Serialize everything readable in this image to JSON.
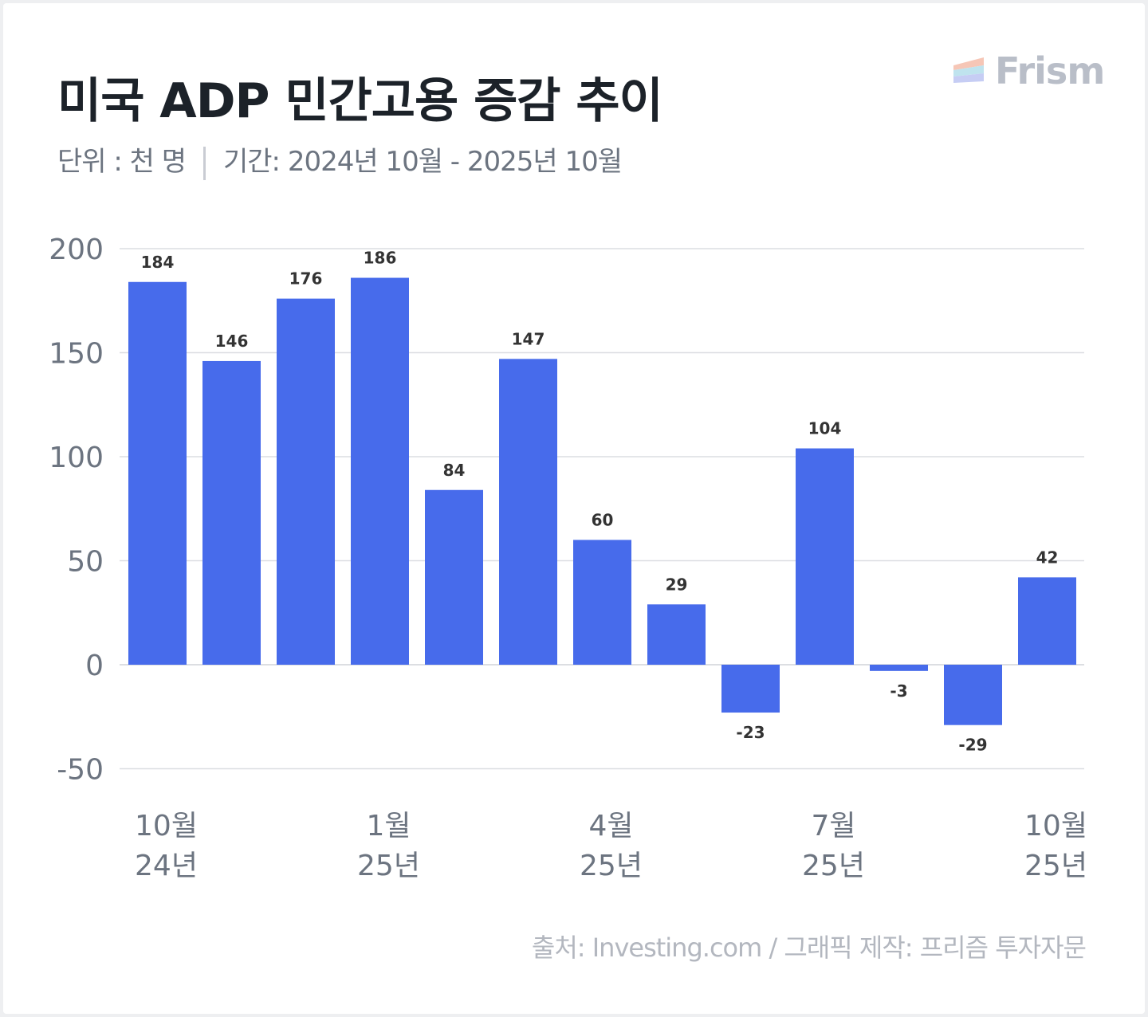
{
  "header": {
    "title": "미국 ADP 민간고용 증감 추이",
    "unit": "단위 : 천 명",
    "period": "기간: 2024년 10월 - 2025년 10월"
  },
  "logo": {
    "text": "Frism"
  },
  "footer": {
    "source": "출처: Investing.com / 그래픽 제작: 프리즘 투자자문"
  },
  "colors": {
    "bar": "#476beb",
    "grid": "#dcdee2",
    "tick": "#6c7480",
    "label": "#333333"
  },
  "chart_data": {
    "type": "bar",
    "title": "미국 ADP 민간고용 증감 추이",
    "ylabel": "천 명",
    "xlabel": "",
    "ylim": [
      -50,
      200
    ],
    "yticks": [
      200,
      150,
      100,
      50,
      0,
      -50
    ],
    "categories": [
      "2024-10",
      "2024-11",
      "2024-12",
      "2025-01",
      "2025-02",
      "2025-03",
      "2025-04",
      "2025-05",
      "2025-06",
      "2025-07",
      "2025-08",
      "2025-09",
      "2025-10"
    ],
    "values": [
      184,
      146,
      176,
      186,
      84,
      147,
      60,
      29,
      -23,
      104,
      -3,
      -29,
      42
    ],
    "xtick_labels": [
      {
        "index": 0,
        "month": "10월",
        "year": "24년"
      },
      {
        "index": 3,
        "month": "1월",
        "year": "25년"
      },
      {
        "index": 6,
        "month": "4월",
        "year": "25년"
      },
      {
        "index": 9,
        "month": "7월",
        "year": "25년"
      },
      {
        "index": 12,
        "month": "10월",
        "year": "25년"
      }
    ],
    "grid": true,
    "legend": "none"
  }
}
